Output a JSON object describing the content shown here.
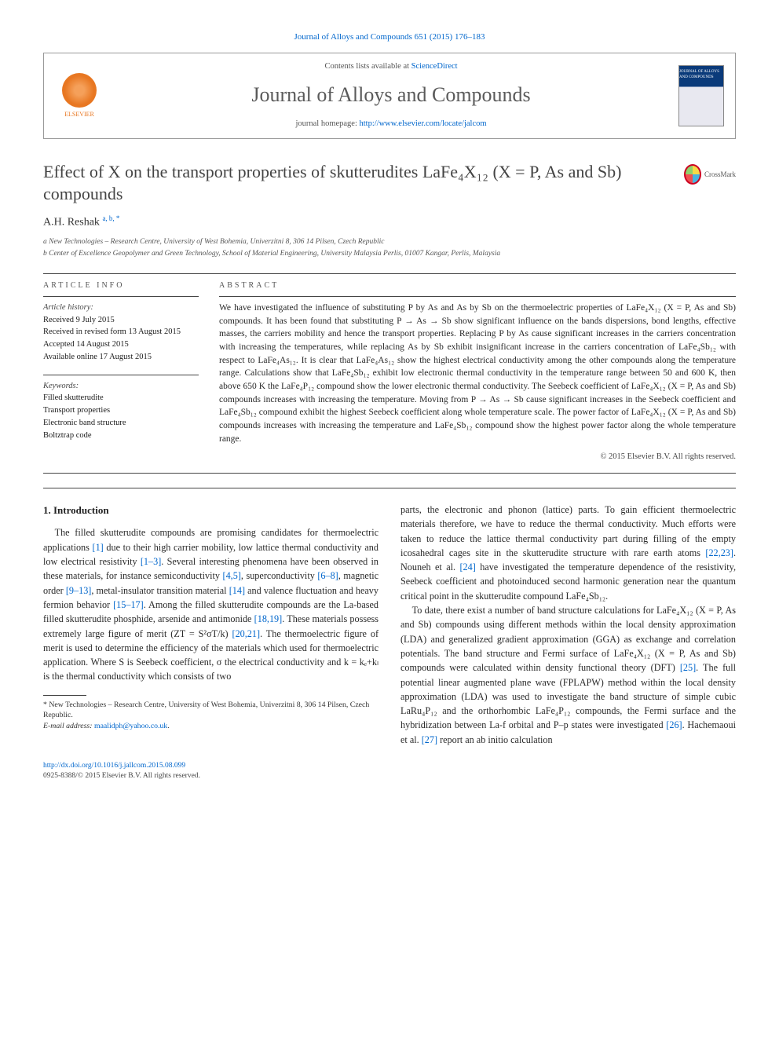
{
  "journal_ref": "Journal of Alloys and Compounds 651 (2015) 176–183",
  "header": {
    "contents_prefix": "Contents lists available at ",
    "contents_link": "ScienceDirect",
    "journal_title": "Journal of Alloys and Compounds",
    "homepage_prefix": "journal homepage: ",
    "homepage_url": "http://www.elsevier.com/locate/jalcom",
    "publisher": "ELSEVIER",
    "cover_text": "JOURNAL OF ALLOYS AND COMPOUNDS"
  },
  "crossmark_label": "CrossMark",
  "article": {
    "title": "Effect of X on the transport properties of skutterudites LaFe₄X₁₂ (X = P, As and Sb) compounds",
    "author": "A.H. Reshak ",
    "author_marks": "a, b, *",
    "affiliations": {
      "a": "a New Technologies – Research Centre, University of West Bohemia, Univerzitni 8, 306 14 Pilsen, Czech Republic",
      "b": "b Center of Excellence Geopolymer and Green Technology, School of Material Engineering, University Malaysia Perlis, 01007 Kangar, Perlis, Malaysia"
    }
  },
  "meta": {
    "article_info_label": "ARTICLE INFO",
    "abstract_label": "ABSTRACT",
    "history_label": "Article history:",
    "received": "Received 9 July 2015",
    "revised": "Received in revised form 13 August 2015",
    "accepted": "Accepted 14 August 2015",
    "online": "Available online 17 August 2015",
    "keywords_label": "Keywords:",
    "keywords": [
      "Filled skutterudite",
      "Transport properties",
      "Electronic band structure",
      "Boltztrap code"
    ]
  },
  "abstract": "We have investigated the influence of substituting P by As and As by Sb on the thermoelectric properties of LaFe₄X₁₂ (X = P, As and Sb) compounds. It has been found that substituting P → As → Sb show significant influence on the bands dispersions, bond lengths, effective masses, the carriers mobility and hence the transport properties. Replacing P by As cause significant increases in the carriers concentration with increasing the temperatures, while replacing As by Sb exhibit insignificant increase in the carriers concentration of LaFe₄Sb₁₂ with respect to LaFe₄As₁₂. It is clear that LaFe₄As₁₂ show the highest electrical conductivity among the other compounds along the temperature range. Calculations show that LaFe₄Sb₁₂ exhibit low electronic thermal conductivity in the temperature range between 50 and 600 K, then above 650 K the LaFe₄P₁₂ compound show the lower electronic thermal conductivity. The Seebeck coefficient of LaFe₄X₁₂ (X = P, As and Sb) compounds increases with increasing the temperature. Moving from P → As → Sb cause significant increases in the Seebeck coefficient and LaFe₄Sb₁₂ compound exhibit the highest Seebeck coefficient along whole temperature scale. The power factor of LaFe₄X₁₂ (X = P, As and Sb) compounds increases with increasing the temperature and LaFe₄Sb₁₂ compound show the highest power factor along the whole temperature range.",
  "copyright": "© 2015 Elsevier B.V. All rights reserved.",
  "body": {
    "intro_heading": "1. Introduction",
    "p1_a": "The filled skutterudite compounds are promising candidates for thermoelectric applications ",
    "r1": "[1]",
    "p1_b": " due to their high carrier mobility, low lattice thermal conductivity and low electrical resistivity ",
    "r1_3": "[1–3]",
    "p1_c": ". Several interesting phenomena have been observed in these materials, for instance semiconductivity ",
    "r4_5": "[4,5]",
    "p1_d": ", superconductivity ",
    "r6_8": "[6–8]",
    "p1_e": ", magnetic order ",
    "r9_13": "[9–13]",
    "p1_f": ", metal-insulator transition material ",
    "r14": "[14]",
    "p1_g": " and valence fluctuation and heavy fermion behavior ",
    "r15_17": "[15–17]",
    "p1_h": ". Among the filled skutterudite compounds are the La-based filled skutterudite phosphide, arsenide and antimonide ",
    "r18_19": "[18,19]",
    "p1_i": ". These materials possess extremely large figure of merit (ZT = S²σT/k) ",
    "r20_21": "[20,21]",
    "p1_j": ". The thermoelectric figure of merit is used to determine the efficiency of the materials which used for thermoelectric application. Where S is Seebeck coefficient, σ the electrical conductivity and k = kₑ+kₗ is the thermal conductivity which consists of two ",
    "p2_a": "parts, the electronic and phonon (lattice) parts. To gain efficient thermoelectric materials therefore, we have to reduce the thermal conductivity. Much efforts were taken to reduce the lattice thermal conductivity part during filling of the empty icosahedral cages site in the skutterudite structure with rare earth atoms ",
    "r22_23": "[22,23]",
    "p2_b": ". Nouneh et al. ",
    "r24": "[24]",
    "p2_c": " have investigated the temperature dependence of the resistivity, Seebeck coefficient and photoinduced second harmonic generation near the quantum critical point in the skutterudite compound LaFe₄Sb₁₂.",
    "p3_a": "To date, there exist a number of band structure calculations for LaFe₄X₁₂ (X = P, As and Sb) compounds using different methods within the local density approximation (LDA) and generalized gradient approximation (GGA) as exchange and correlation potentials. The band structure and Fermi surface of LaFe₄X₁₂ (X = P, As and Sb) compounds were calculated within density functional theory (DFT) ",
    "r25": "[25]",
    "p3_b": ". The full potential linear augmented plane wave (FPLAPW) method within the local density approximation (LDA) was used to investigate the band structure of simple cubic LaRu₄P₁₂ and the orthorhombic LaFe₄P₁₂ compounds, the Fermi surface and the hybridization between La-f orbital and P–p states were investigated ",
    "r26": "[26]",
    "p3_c": ". Hachemaoui et al. ",
    "r27": "[27]",
    "p3_d": " report an ab initio calculation"
  },
  "footnote": {
    "corr": "* New Technologies – Research Centre, University of West Bohemia, Univerzitni 8, 306 14 Pilsen, Czech Republic.",
    "email_label": "E-mail address: ",
    "email": "maalidph@yahoo.co.uk"
  },
  "footer": {
    "doi": "http://dx.doi.org/10.1016/j.jallcom.2015.08.099",
    "issn_line": "0925-8388/© 2015 Elsevier B.V. All rights reserved."
  },
  "colors": {
    "link": "#0066cc",
    "elsevier": "#e87722",
    "text": "#2a2a2a",
    "rule": "#444444"
  }
}
